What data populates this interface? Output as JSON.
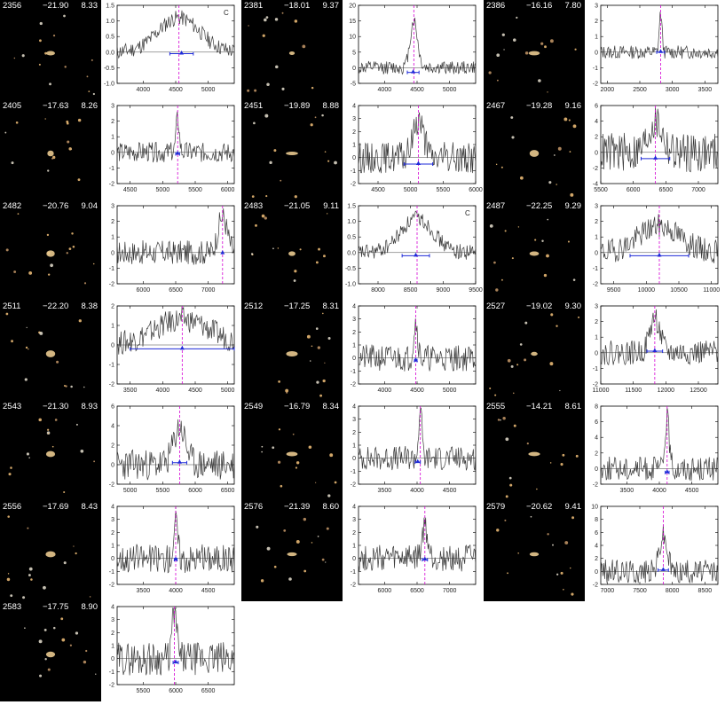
{
  "figure": {
    "description_colors": {
      "background": "#000000",
      "spectrum": "#3a3a3a",
      "marker": "#d400d4",
      "center": "#1e2ad8"
    }
  },
  "chart_data": [
    {
      "type": "line",
      "galaxy_id": "2356",
      "abs_mag": "−21.90",
      "log_mass": "8.33",
      "xlim": [
        3600,
        5400
      ],
      "ylim": [
        -1.0,
        1.5
      ],
      "xticks": [
        4000,
        4500,
        5000
      ],
      "yticks": [
        -1.0,
        -0.5,
        0.0,
        0.5,
        1.0,
        1.5
      ],
      "ytick_labels": [
        "-1.0",
        "-0.5",
        "0.0",
        "0.5",
        "1.0",
        "1.5"
      ],
      "line_x": 4550,
      "center": 4590,
      "hw": 180,
      "center_y": -0.05,
      "flag": "C",
      "seed": 11,
      "amp": 0.35,
      "peak": 1.1,
      "pw": 900
    },
    {
      "type": "line",
      "galaxy_id": "2381",
      "abs_mag": "−18.01",
      "log_mass": "9.37",
      "xlim": [
        3600,
        5400
      ],
      "ylim": [
        -5,
        20
      ],
      "xticks": [
        4000,
        4500,
        5000
      ],
      "yticks": [
        -5,
        0,
        5,
        10,
        15,
        20
      ],
      "ytick_labels": [
        "-5",
        "0",
        "5",
        "10",
        "15",
        "20"
      ],
      "line_x": 4450,
      "center": 4440,
      "hw": 90,
      "center_y": -1.5,
      "flag": "",
      "seed": 12,
      "amp": 0.3,
      "peak": 15,
      "pw": 160
    },
    {
      "type": "line",
      "galaxy_id": "2386",
      "abs_mag": "−16.16",
      "log_mass": "7.80",
      "xlim": [
        1900,
        3700
      ],
      "ylim": [
        -2,
        3
      ],
      "xticks": [
        2000,
        2500,
        3000,
        3500
      ],
      "yticks": [
        -2,
        -1,
        0,
        1,
        2,
        3
      ],
      "ytick_labels": [
        "-2",
        "-1",
        "0",
        "1",
        "2",
        "3"
      ],
      "line_x": 2820,
      "center": 2820,
      "hw": 60,
      "center_y": 0.0,
      "flag": "",
      "seed": 13,
      "amp": 0.3,
      "peak": 2.5,
      "pw": 60
    },
    {
      "type": "line",
      "galaxy_id": "2405",
      "abs_mag": "−17.63",
      "log_mass": "8.26",
      "xlim": [
        4300,
        6100
      ],
      "ylim": [
        -2,
        3
      ],
      "xticks": [
        4500,
        5000,
        5500,
        6000
      ],
      "yticks": [
        -2,
        -1,
        0,
        1,
        2,
        3
      ],
      "ytick_labels": [
        "-2",
        "-1",
        "0",
        "1",
        "2",
        "3"
      ],
      "line_x": 5230,
      "center": 5230,
      "hw": 30,
      "center_y": -0.1,
      "flag": "",
      "seed": 14,
      "amp": 0.45,
      "peak": 2.2,
      "pw": 70
    },
    {
      "type": "line",
      "galaxy_id": "2451",
      "abs_mag": "−19.89",
      "log_mass": "8.88",
      "xlim": [
        4200,
        6000
      ],
      "ylim": [
        -2,
        4
      ],
      "xticks": [
        4500,
        5000,
        5500,
        6000
      ],
      "yticks": [
        -2,
        -1,
        0,
        1,
        2,
        3,
        4
      ],
      "ytick_labels": [
        "-2",
        "-1",
        "0",
        "1",
        "2",
        "3",
        "4"
      ],
      "line_x": 5120,
      "center": 5120,
      "hw": 220,
      "center_y": -0.5,
      "flag": "",
      "seed": 15,
      "amp": 0.7,
      "peak": 3.0,
      "pw": 220
    },
    {
      "type": "line",
      "galaxy_id": "2467",
      "abs_mag": "−19.28",
      "log_mass": "9.16",
      "xlim": [
        5500,
        7300
      ],
      "ylim": [
        -4,
        6
      ],
      "xticks": [
        5500,
        6000,
        6500,
        7000
      ],
      "yticks": [
        -4,
        -2,
        0,
        2,
        4,
        6
      ],
      "ytick_labels": [
        "-4",
        "-2",
        "0",
        "2",
        "4",
        "6"
      ],
      "line_x": 6340,
      "center": 6340,
      "hw": 220,
      "center_y": -0.8,
      "flag": "",
      "seed": 16,
      "amp": 0.9,
      "peak": 4.0,
      "pw": 300
    },
    {
      "type": "line",
      "galaxy_id": "2482",
      "abs_mag": "−20.76",
      "log_mass": "9.04",
      "xlim": [
        5600,
        7400
      ],
      "ylim": [
        -2,
        3
      ],
      "xticks": [
        6000,
        6500,
        7000
      ],
      "yticks": [
        -2,
        -1,
        0,
        1,
        2,
        3
      ],
      "ytick_labels": [
        "-2",
        "-1",
        "0",
        "1",
        "2",
        "3"
      ],
      "line_x": 7220,
      "center": 7220,
      "hw": 0,
      "center_y": -0.05,
      "flag": "",
      "seed": 17,
      "amp": 0.55,
      "peak": 2.3,
      "pw": 200
    },
    {
      "type": "line",
      "galaxy_id": "2483",
      "abs_mag": "−21.05",
      "log_mass": "9.11",
      "xlim": [
        7700,
        9500
      ],
      "ylim": [
        -1.0,
        1.5
      ],
      "xticks": [
        8000,
        8500,
        9000,
        9500
      ],
      "yticks": [
        -1.0,
        -0.5,
        0.0,
        0.5,
        1.0,
        1.5
      ],
      "ytick_labels": [
        "-1.0",
        "-0.5",
        "0.0",
        "0.5",
        "1.0",
        "1.5"
      ],
      "line_x": 8600,
      "center": 8580,
      "hw": 210,
      "center_y": -0.1,
      "flag": "C",
      "seed": 18,
      "amp": 0.35,
      "peak": 1.1,
      "pw": 700
    },
    {
      "type": "line",
      "galaxy_id": "2487",
      "abs_mag": "−22.25",
      "log_mass": "9.29",
      "xlim": [
        9300,
        11100
      ],
      "ylim": [
        -2,
        3
      ],
      "xticks": [
        9500,
        10000,
        10500,
        11000
      ],
      "yticks": [
        -2,
        -1,
        0,
        1,
        2,
        3
      ],
      "ytick_labels": [
        "-2",
        "-1",
        "0",
        "1",
        "2",
        "3"
      ],
      "line_x": 10200,
      "center": 10200,
      "hw": 450,
      "center_y": -0.2,
      "flag": "",
      "seed": 19,
      "amp": 0.55,
      "peak": 1.7,
      "pw": 900
    },
    {
      "type": "line",
      "galaxy_id": "2511",
      "abs_mag": "−22.20",
      "log_mass": "8.38",
      "xlim": [
        3300,
        5100
      ],
      "ylim": [
        -2,
        2
      ],
      "xticks": [
        3500,
        4000,
        4500,
        5000
      ],
      "yticks": [
        -2,
        -1,
        0,
        1,
        2
      ],
      "ytick_labels": [
        "-2",
        "-1",
        "0",
        "1",
        "2"
      ],
      "line_x": 4300,
      "center": 4300,
      "hw": 800,
      "center_y": -0.2,
      "flag": "",
      "seed": 20,
      "amp": 0.55,
      "peak": 1.3,
      "pw": 1200
    },
    {
      "type": "line",
      "galaxy_id": "2512",
      "abs_mag": "−17.25",
      "log_mass": "8.31",
      "xlim": [
        3600,
        5400
      ],
      "ylim": [
        -2,
        4
      ],
      "xticks": [
        4000,
        4500,
        5000
      ],
      "yticks": [
        -2,
        -1,
        0,
        1,
        2,
        3,
        4
      ],
      "ytick_labels": [
        "-2",
        "-1",
        "0",
        "1",
        "2",
        "3",
        "4"
      ],
      "line_x": 4480,
      "center": 4480,
      "hw": 20,
      "center_y": -0.2,
      "flag": "",
      "seed": 21,
      "amp": 0.6,
      "peak": 2.8,
      "pw": 90
    },
    {
      "type": "line",
      "galaxy_id": "2527",
      "abs_mag": "−19.02",
      "log_mass": "9.30",
      "xlim": [
        11000,
        12800
      ],
      "ylim": [
        -2,
        3
      ],
      "xticks": [
        11000,
        11500,
        12000,
        12500
      ],
      "yticks": [
        -2,
        -1,
        0,
        1,
        2,
        3
      ],
      "ytick_labels": [
        "-2",
        "-1",
        "0",
        "1",
        "2",
        "3"
      ],
      "line_x": 11830,
      "center": 11830,
      "hw": 120,
      "center_y": 0.1,
      "flag": "",
      "seed": 22,
      "amp": 0.55,
      "peak": 2.2,
      "pw": 220
    },
    {
      "type": "line",
      "galaxy_id": "2543",
      "abs_mag": "−21.30",
      "log_mass": "8.93",
      "xlim": [
        4800,
        6600
      ],
      "ylim": [
        -2,
        6
      ],
      "xticks": [
        5000,
        5500,
        6000,
        6500
      ],
      "yticks": [
        -2,
        0,
        2,
        4,
        6
      ],
      "ytick_labels": [
        "-2",
        "0",
        "2",
        "4",
        "6"
      ],
      "line_x": 5760,
      "center": 5760,
      "hw": 110,
      "center_y": 0.2,
      "flag": "",
      "seed": 23,
      "amp": 0.7,
      "peak": 3.8,
      "pw": 260
    },
    {
      "type": "line",
      "galaxy_id": "2549",
      "abs_mag": "−16.79",
      "log_mass": "8.34",
      "xlim": [
        3100,
        4900
      ],
      "ylim": [
        -2,
        4
      ],
      "xticks": [
        3500,
        4000,
        4500
      ],
      "yticks": [
        -2,
        -1,
        0,
        1,
        2,
        3,
        4
      ],
      "ytick_labels": [
        "-2",
        "-1",
        "0",
        "1",
        "2",
        "3",
        "4"
      ],
      "line_x": 4050,
      "center": 4010,
      "hw": 40,
      "center_y": -0.3,
      "flag": "",
      "seed": 24,
      "amp": 0.55,
      "peak": 3.8,
      "pw": 70
    },
    {
      "type": "line",
      "galaxy_id": "2555",
      "abs_mag": "−14.21",
      "log_mass": "8.61",
      "xlim": [
        3100,
        4900
      ],
      "ylim": [
        -2,
        8
      ],
      "xticks": [
        3500,
        4000,
        4500
      ],
      "yticks": [
        -2,
        0,
        2,
        4,
        6,
        8
      ],
      "ytick_labels": [
        "-2",
        "0",
        "2",
        "4",
        "6",
        "8"
      ],
      "line_x": 4120,
      "center": 4120,
      "hw": 30,
      "center_y": -0.5,
      "flag": "",
      "seed": 25,
      "amp": 0.55,
      "peak": 6.5,
      "pw": 90
    },
    {
      "type": "line",
      "galaxy_id": "2556",
      "abs_mag": "−17.69",
      "log_mass": "8.43",
      "xlim": [
        3100,
        4900
      ],
      "ylim": [
        -2,
        4
      ],
      "xticks": [
        3500,
        4000,
        4500
      ],
      "yticks": [
        -2,
        -1,
        0,
        1,
        2,
        3,
        4
      ],
      "ytick_labels": [
        "-2",
        "-1",
        "0",
        "1",
        "2",
        "3",
        "4"
      ],
      "line_x": 4000,
      "center": 4000,
      "hw": 20,
      "center_y": -0.1,
      "flag": "",
      "seed": 26,
      "amp": 0.65,
      "peak": 2.8,
      "pw": 90
    },
    {
      "type": "line",
      "galaxy_id": "2576",
      "abs_mag": "−21.39",
      "log_mass": "8.60",
      "xlim": [
        5600,
        7400
      ],
      "ylim": [
        -2,
        4
      ],
      "xticks": [
        6000,
        6500,
        7000
      ],
      "yticks": [
        -2,
        -1,
        0,
        1,
        2,
        3,
        4
      ],
      "ytick_labels": [
        "-2",
        "-1",
        "0",
        "1",
        "2",
        "3",
        "4"
      ],
      "line_x": 6620,
      "center": 6620,
      "hw": 40,
      "center_y": -0.1,
      "flag": "",
      "seed": 27,
      "amp": 0.6,
      "peak": 2.4,
      "pw": 120
    },
    {
      "type": "line",
      "galaxy_id": "2579",
      "abs_mag": "−20.62",
      "log_mass": "9.41",
      "xlim": [
        6900,
        8700
      ],
      "ylim": [
        -2,
        10
      ],
      "xticks": [
        7000,
        7500,
        8000,
        8500
      ],
      "yticks": [
        -2,
        0,
        2,
        4,
        6,
        8,
        10
      ],
      "ytick_labels": [
        "-2",
        "0",
        "2",
        "4",
        "6",
        "8",
        "10"
      ],
      "line_x": 7860,
      "center": 7860,
      "hw": 80,
      "center_y": 0.2,
      "flag": "",
      "seed": 28,
      "amp": 0.55,
      "peak": 5.5,
      "pw": 170
    },
    {
      "type": "line",
      "galaxy_id": "2583",
      "abs_mag": "−17.75",
      "log_mass": "8.90",
      "xlim": [
        5100,
        6900
      ],
      "ylim": [
        -2,
        4
      ],
      "xticks": [
        5500,
        6000,
        6500
      ],
      "yticks": [
        -2,
        -1,
        0,
        1,
        2,
        3,
        4
      ],
      "ytick_labels": [
        "-2",
        "-1",
        "0",
        "1",
        "2",
        "3",
        "4"
      ],
      "line_x": 5980,
      "center": 6000,
      "hw": 40,
      "center_y": -0.3,
      "flag": "",
      "seed": 29,
      "amp": 0.75,
      "peak": 3.8,
      "pw": 100
    }
  ]
}
